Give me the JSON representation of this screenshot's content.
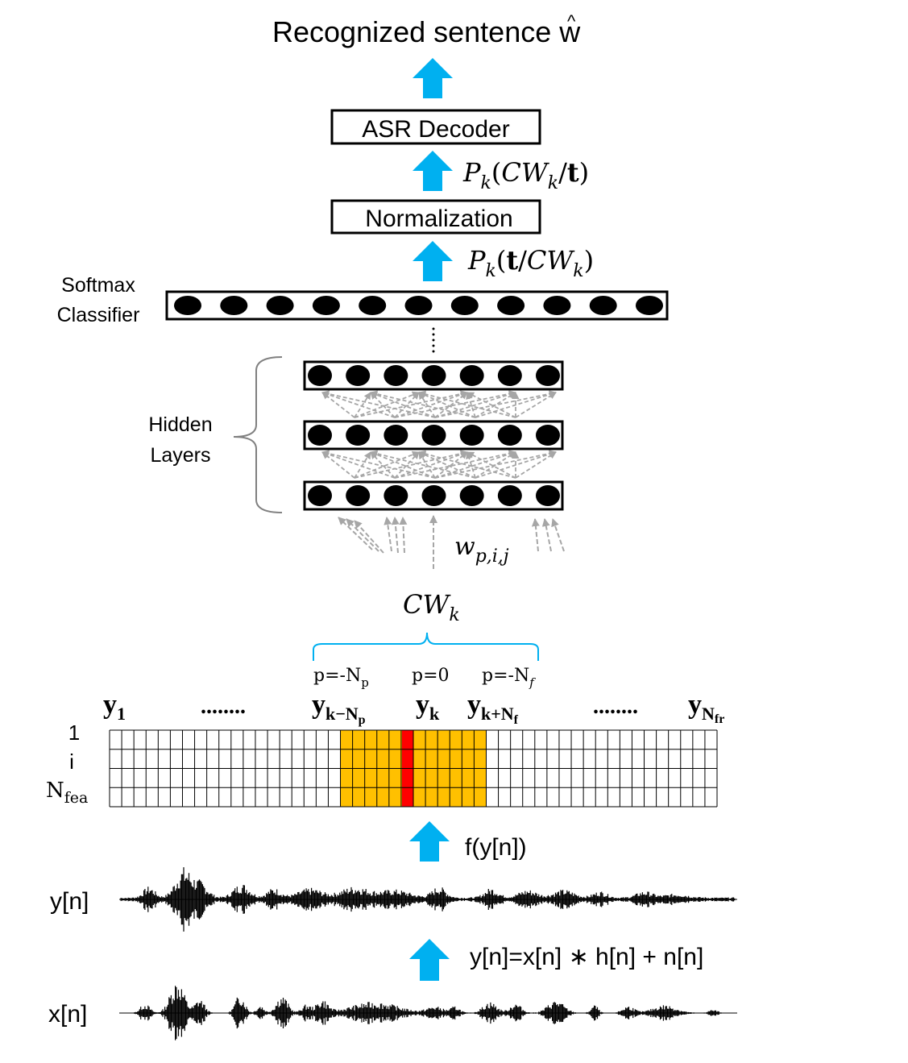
{
  "title": {
    "text": "Recognized sentence ",
    "symbol": "w",
    "hat": "^"
  },
  "boxes": {
    "decoder": "ASR Decoder",
    "normalization": "Normalization"
  },
  "arrow_labels": {
    "posterior": {
      "P": "P",
      "k": "k",
      "open": "(",
      "cw": "CW",
      "sub": "k",
      "slash": "/",
      "t": "t",
      "close": ")"
    },
    "likelihood": {
      "P": "P",
      "k": "k",
      "open": "(",
      "t": "t",
      "slash": "/",
      "cw": "CW",
      "sub": "k",
      "close": ")"
    },
    "features": "f(y[n])",
    "channel": "y[n]=x[n] ∗ h[n] + n[n]"
  },
  "network": {
    "softmax_label_1": "Softmax",
    "softmax_label_2": "Classifier",
    "softmax_units": 11,
    "hidden_label_1": "Hidden",
    "hidden_label_2": "Layers",
    "hidden_layers": 3,
    "hidden_units": 7,
    "ellipsis": "⋮",
    "weight": {
      "w": "w",
      "sub": "p,i,j"
    }
  },
  "context_window": {
    "label": "CW",
    "sub": "k",
    "p_left": {
      "text": "p=-N",
      "sub": "p"
    },
    "p_center": "p=0",
    "p_right": {
      "text": "p=-N",
      "sub": "f"
    }
  },
  "feature_matrix": {
    "y1": {
      "y": "y",
      "sub": "1"
    },
    "dots_left": "........",
    "yk_minus": {
      "y": "y",
      "sub": "k−N",
      "subsub": "p"
    },
    "yk": {
      "y": "y",
      "sub": "k"
    },
    "yk_plus": {
      "y": "y",
      "sub": "k+N",
      "subsub": "f"
    },
    "dots_right": "........",
    "yN": {
      "y": "y",
      "sub": "N",
      "subsub": "fr"
    },
    "row_label_1": "1",
    "row_label_i": "i",
    "row_label_N": "N",
    "row_label_N_sub": "fea",
    "columns": 50,
    "rows": 4,
    "context_columns": [
      19,
      20,
      21,
      22,
      23,
      24,
      25,
      26,
      27,
      28,
      29,
      30
    ],
    "center_column": 24,
    "context_color": "#FFC000",
    "center_color": "#FF0000"
  },
  "signals": {
    "noisy": "y[n]",
    "clean": "x[n]"
  },
  "colors": {
    "arrow": "#00B0F0",
    "brace": "#00B0F0",
    "connections": "#A6A6A6",
    "bracket": "#808080"
  }
}
